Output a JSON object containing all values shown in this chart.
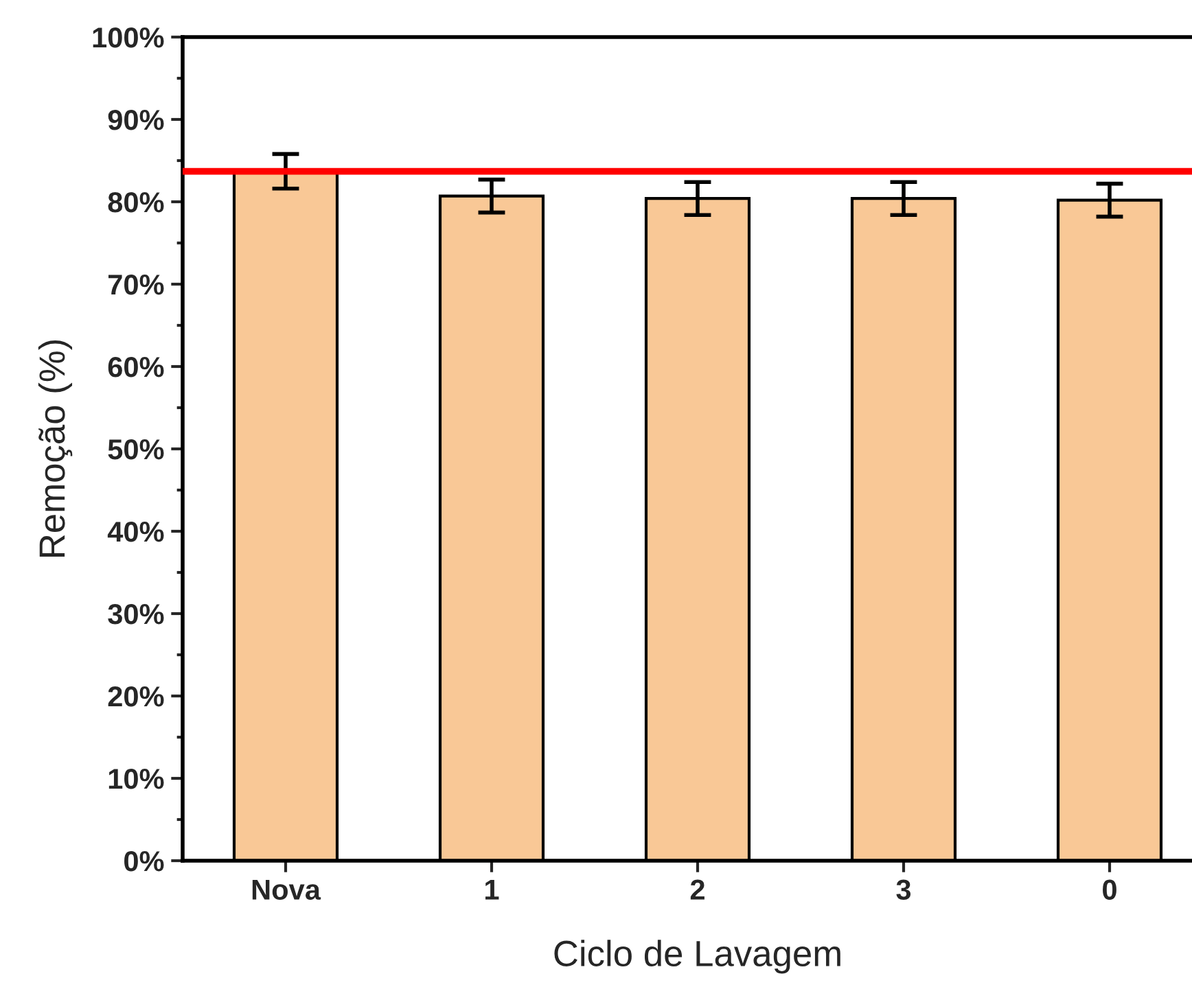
{
  "chart_data": {
    "type": "bar",
    "xlabel": "Ciclo de Lavagem",
    "ylabel": "Remoção (%)",
    "categories": [
      "Nova",
      "1",
      "2",
      "3",
      "0"
    ],
    "values": [
      83.7,
      80.7,
      80.4,
      80.4,
      80.2
    ],
    "errors": [
      2.1,
      2.0,
      2.0,
      2.0,
      2.0
    ],
    "color": "#f9c896",
    "ylim": [
      0,
      100
    ],
    "yticks": [
      {
        "value": 0,
        "label": "0%"
      },
      {
        "value": 10,
        "label": "10%"
      },
      {
        "value": 20,
        "label": "20%"
      },
      {
        "value": 30,
        "label": "30%"
      },
      {
        "value": 40,
        "label": "40%"
      },
      {
        "value": 50,
        "label": "50%"
      },
      {
        "value": 60,
        "label": "60%"
      },
      {
        "value": 70,
        "label": "70%"
      },
      {
        "value": 80,
        "label": "80%"
      },
      {
        "value": 90,
        "label": "90%"
      },
      {
        "value": 100,
        "label": "100%"
      }
    ],
    "ref_lines": [
      {
        "axis": "y",
        "value": 83.7,
        "label": null,
        "color": "#ff0000"
      }
    ],
    "grid": false,
    "legend": false
  }
}
